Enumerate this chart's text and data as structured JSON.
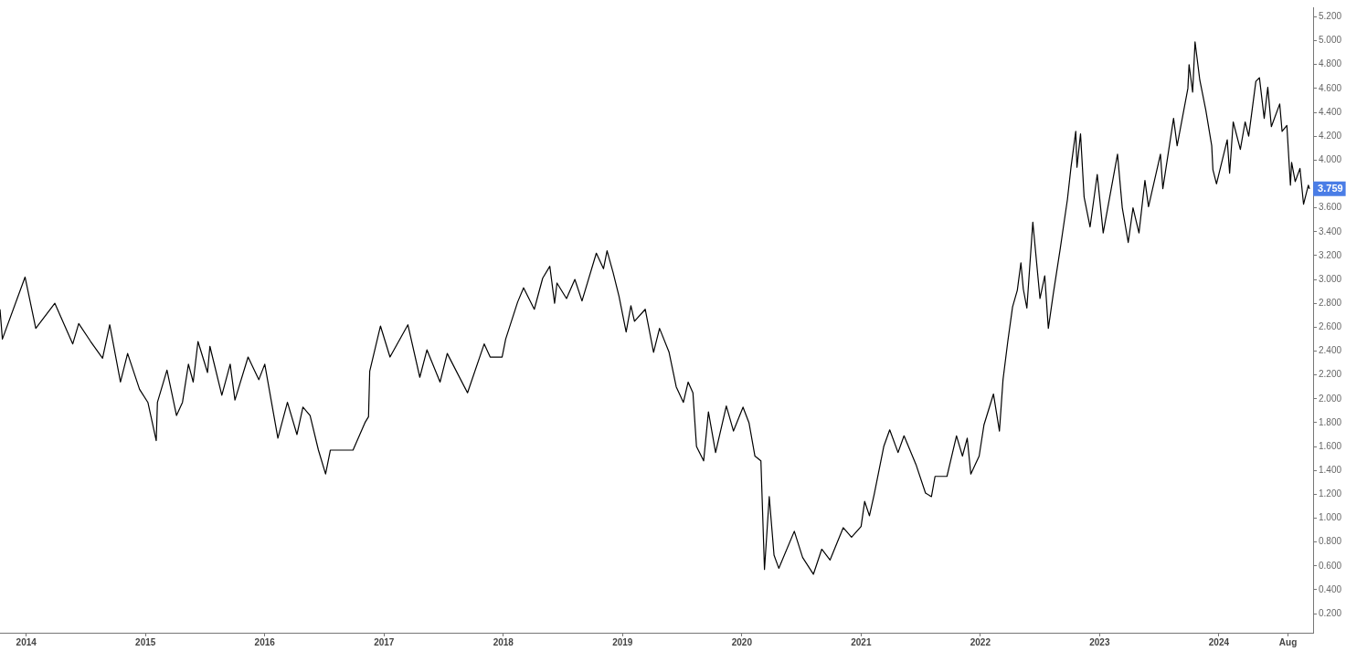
{
  "chart_data": {
    "type": "line",
    "legend": false,
    "grid": false,
    "marker": "none",
    "line_style": "solid",
    "xlim": [
      2013.78,
      2024.79
    ],
    "ylim": [
      0.04,
      5.28
    ],
    "xticks": [
      2014,
      2015,
      2016,
      2017,
      2018,
      2019,
      2020,
      2021,
      2022,
      2023,
      2024,
      {
        "value": 2024.58,
        "label": "Aug"
      }
    ],
    "yticks": [
      {
        "value": 0.2,
        "label": "0.200"
      },
      {
        "value": 0.4,
        "label": "0.400"
      },
      {
        "value": 0.6,
        "label": "0.600"
      },
      {
        "value": 0.8,
        "label": "0.800"
      },
      {
        "value": 1.0,
        "label": "1.000"
      },
      {
        "value": 1.2,
        "label": "1.200"
      },
      {
        "value": 1.4,
        "label": "1.400"
      },
      {
        "value": 1.6,
        "label": "1.600"
      },
      {
        "value": 1.8,
        "label": "1.800"
      },
      {
        "value": 2.0,
        "label": "2.000"
      },
      {
        "value": 2.2,
        "label": "2.200"
      },
      {
        "value": 2.4,
        "label": "2.400"
      },
      {
        "value": 2.6,
        "label": "2.600"
      },
      {
        "value": 2.8,
        "label": "2.800"
      },
      {
        "value": 3.0,
        "label": "3.000"
      },
      {
        "value": 3.2,
        "label": "3.200"
      },
      {
        "value": 3.4,
        "label": "3.400"
      },
      {
        "value": 3.6,
        "label": "3.600"
      },
      {
        "value": 3.8,
        "label": null
      },
      {
        "value": 4.0,
        "label": "4.000"
      },
      {
        "value": 4.2,
        "label": "4.200"
      },
      {
        "value": 4.4,
        "label": "4.400"
      },
      {
        "value": 4.6,
        "label": "4.600"
      },
      {
        "value": 4.8,
        "label": "4.800"
      },
      {
        "value": 5.0,
        "label": "5.000"
      },
      {
        "value": 5.2,
        "label": "5.200"
      }
    ],
    "annotations": [
      {
        "text": "3.759",
        "x": 2024.76,
        "y": 3.759
      }
    ],
    "series": [
      {
        "color": "#000000",
        "x": [
          2013.78,
          2013.8,
          2013.99,
          2014.08,
          2014.24,
          2014.39,
          2014.44,
          2014.54,
          2014.64,
          2014.7,
          2014.79,
          2014.85,
          2014.95,
          2015.02,
          2015.09,
          2015.1,
          2015.18,
          2015.26,
          2015.31,
          2015.36,
          2015.4,
          2015.44,
          2015.52,
          2015.54,
          2015.64,
          2015.71,
          2015.75,
          2015.86,
          2015.95,
          2016.0,
          2016.11,
          2016.19,
          2016.27,
          2016.32,
          2016.38,
          2016.45,
          2016.51,
          2016.55,
          2016.74,
          2016.84,
          2016.87,
          2016.88,
          2016.97,
          2017.05,
          2017.2,
          2017.3,
          2017.36,
          2017.47,
          2017.53,
          2017.7,
          2017.84,
          2017.89,
          2017.99,
          2018.02,
          2018.12,
          2018.17,
          2018.26,
          2018.33,
          2018.39,
          2018.43,
          2018.45,
          2018.53,
          2018.6,
          2018.66,
          2018.78,
          2018.84,
          2018.87,
          2018.92,
          2018.97,
          2019.03,
          2019.07,
          2019.1,
          2019.19,
          2019.26,
          2019.31,
          2019.39,
          2019.45,
          2019.51,
          2019.55,
          2019.59,
          2019.62,
          2019.68,
          2019.72,
          2019.78,
          2019.87,
          2019.93,
          2020.01,
          2020.06,
          2020.11,
          2020.16,
          2020.19,
          2020.23,
          2020.27,
          2020.31,
          2020.44,
          2020.51,
          2020.6,
          2020.67,
          2020.74,
          2020.85,
          2020.92,
          2021.0,
          2021.03,
          2021.07,
          2021.11,
          2021.19,
          2021.24,
          2021.31,
          2021.36,
          2021.46,
          2021.54,
          2021.59,
          2021.62,
          2021.72,
          2021.8,
          2021.85,
          2021.89,
          2021.92,
          2021.99,
          2022.03,
          2022.11,
          2022.16,
          2022.19,
          2022.23,
          2022.27,
          2022.31,
          2022.34,
          2022.36,
          2022.39,
          2022.44,
          2022.5,
          2022.54,
          2022.57,
          2022.61,
          2022.67,
          2022.73,
          2022.76,
          2022.8,
          2022.81,
          2022.84,
          2022.87,
          2022.92,
          2022.98,
          2023.03,
          2023.15,
          2023.19,
          2023.24,
          2023.28,
          2023.33,
          2023.38,
          2023.41,
          2023.51,
          2023.53,
          2023.62,
          2023.65,
          2023.74,
          2023.75,
          2023.78,
          2023.8,
          2023.84,
          2023.89,
          2023.94,
          2023.95,
          2023.98,
          2024.07,
          2024.09,
          2024.12,
          2024.18,
          2024.22,
          2024.25,
          2024.31,
          2024.34,
          2024.38,
          2024.41,
          2024.44,
          2024.51,
          2024.53,
          2024.57,
          2024.6,
          2024.61,
          2024.64,
          2024.68,
          2024.71,
          2024.75,
          2024.76
        ],
        "values": [
          2.75,
          2.5,
          3.02,
          2.59,
          2.8,
          2.46,
          2.63,
          2.48,
          2.34,
          2.62,
          2.14,
          2.38,
          2.08,
          1.97,
          1.65,
          1.97,
          2.24,
          1.86,
          1.97,
          2.29,
          2.14,
          2.48,
          2.22,
          2.44,
          2.03,
          2.29,
          1.99,
          2.35,
          2.16,
          2.29,
          1.67,
          1.97,
          1.7,
          1.93,
          1.86,
          1.57,
          1.37,
          1.57,
          1.57,
          1.8,
          1.85,
          2.23,
          2.61,
          2.35,
          2.62,
          2.18,
          2.41,
          2.14,
          2.38,
          2.05,
          2.46,
          2.35,
          2.35,
          2.5,
          2.81,
          2.93,
          2.75,
          3.01,
          3.11,
          2.8,
          2.97,
          2.84,
          3.0,
          2.82,
          3.22,
          3.09,
          3.24,
          3.06,
          2.86,
          2.56,
          2.78,
          2.65,
          2.75,
          2.39,
          2.59,
          2.39,
          2.1,
          1.97,
          2.14,
          2.05,
          1.6,
          1.48,
          1.89,
          1.55,
          1.94,
          1.73,
          1.93,
          1.8,
          1.52,
          1.48,
          0.57,
          1.18,
          0.69,
          0.58,
          0.89,
          0.67,
          0.53,
          0.74,
          0.65,
          0.92,
          0.84,
          0.93,
          1.14,
          1.02,
          1.2,
          1.6,
          1.74,
          1.55,
          1.69,
          1.45,
          1.21,
          1.18,
          1.35,
          1.35,
          1.69,
          1.52,
          1.67,
          1.37,
          1.52,
          1.78,
          2.04,
          1.73,
          2.16,
          2.48,
          2.77,
          2.91,
          3.14,
          2.92,
          2.76,
          3.48,
          2.84,
          3.03,
          2.59,
          2.87,
          3.26,
          3.67,
          3.94,
          4.24,
          3.94,
          4.22,
          3.69,
          3.44,
          3.88,
          3.39,
          4.05,
          3.6,
          3.31,
          3.6,
          3.39,
          3.83,
          3.61,
          4.05,
          3.76,
          4.35,
          4.12,
          4.6,
          4.8,
          4.57,
          4.99,
          4.67,
          4.42,
          4.12,
          3.92,
          3.8,
          4.17,
          3.89,
          4.32,
          4.09,
          4.32,
          4.2,
          4.66,
          4.69,
          4.35,
          4.61,
          4.28,
          4.47,
          4.24,
          4.29,
          3.79,
          3.98,
          3.82,
          3.93,
          3.63,
          3.79,
          3.759
        ]
      }
    ]
  }
}
